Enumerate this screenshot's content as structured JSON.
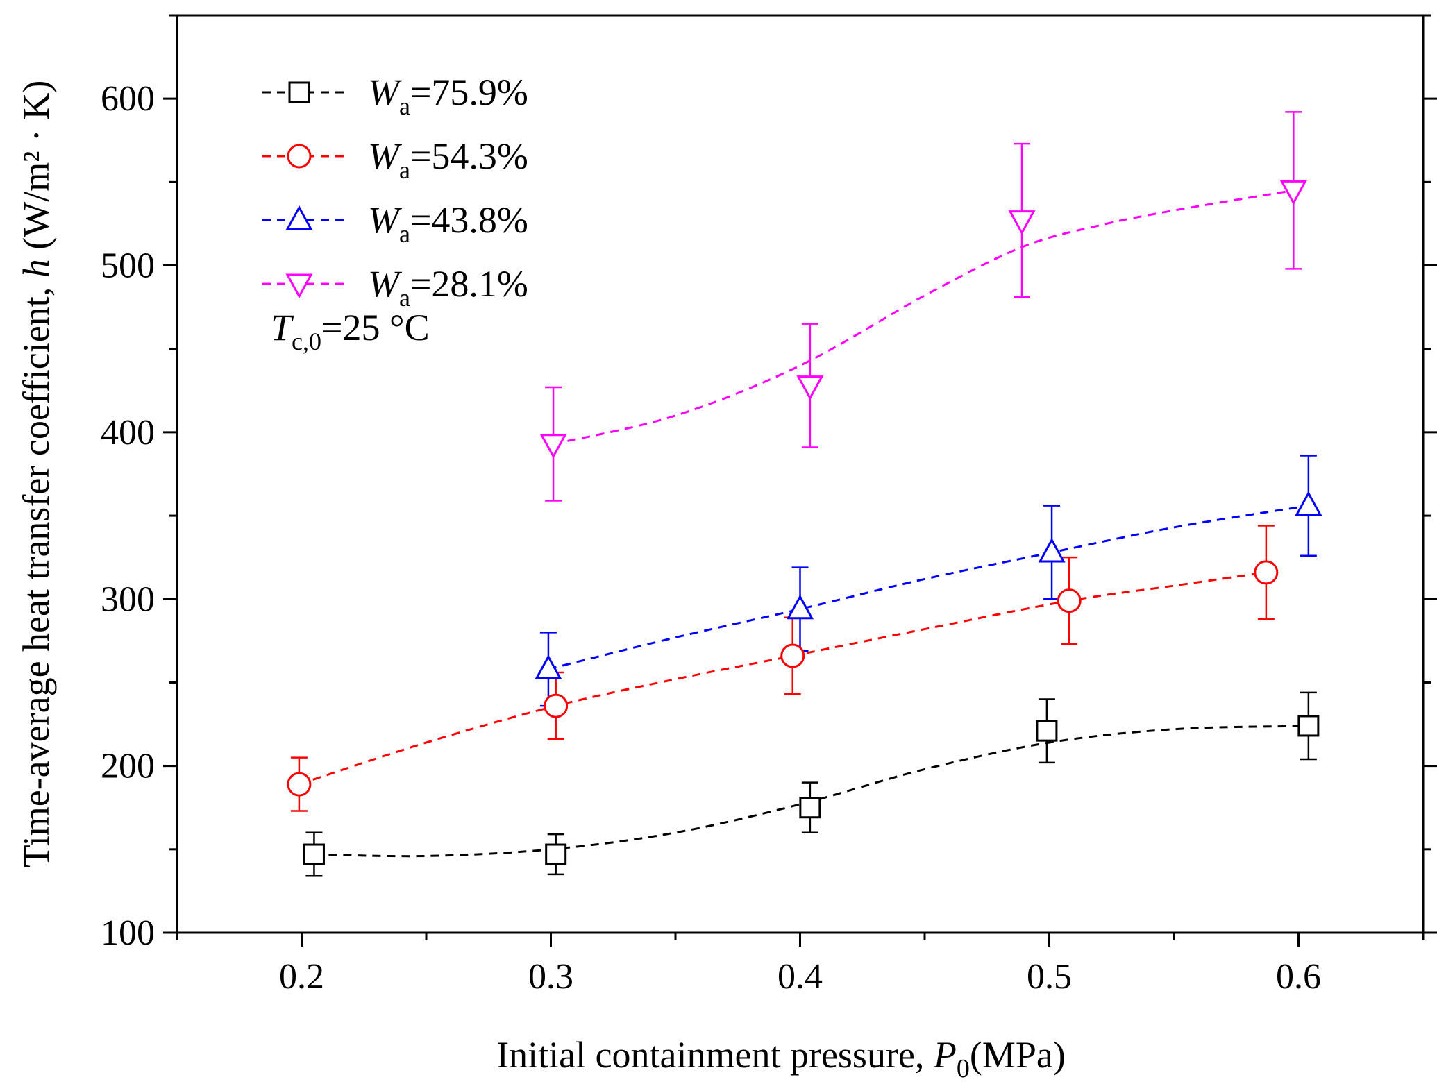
{
  "chart_data": {
    "type": "line",
    "xlabel_prefix": "Initial containment pressure, ",
    "xlabel_var": "P",
    "xlabel_sub": "0",
    "xlabel_unit": "(MPa)",
    "ylabel_prefix": "Time-average heat transfer coefficient, ",
    "ylabel_var": "h",
    "ylabel_unit": " (W/m² · K)",
    "xlim": [
      0.15,
      0.65
    ],
    "ylim": [
      100,
      650
    ],
    "x_ticks": [
      0.2,
      0.3,
      0.4,
      0.5,
      0.6
    ],
    "x_tick_labels": [
      "0.2",
      "0.3",
      "0.4",
      "0.5",
      "0.6"
    ],
    "y_ticks": [
      100,
      200,
      300,
      400,
      500,
      600
    ],
    "y_tick_labels": [
      "100",
      "200",
      "300",
      "400",
      "500",
      "600"
    ],
    "legend_position": "top-left",
    "annotation": {
      "var": "T",
      "sub": "c,0",
      "text": "=25 °C"
    },
    "series": [
      {
        "label_var": "W",
        "label_sub": "a",
        "label_value": "=75.9%",
        "marker": "square",
        "color": "#000000",
        "x": [
          0.205,
          0.302,
          0.404,
          0.499,
          0.604
        ],
        "y": [
          147,
          147,
          175,
          221,
          224
        ],
        "err": [
          13,
          12,
          15,
          19,
          20
        ],
        "fit_x": [
          0.205,
          0.25,
          0.3,
          0.35,
          0.4,
          0.45,
          0.5,
          0.55,
          0.604
        ],
        "fit_y": [
          147,
          146,
          150,
          160,
          177,
          198,
          214,
          222,
          224
        ]
      },
      {
        "label_var": "W",
        "label_sub": "a",
        "label_value": "=54.3%",
        "marker": "circle",
        "color": "#ff0000",
        "x": [
          0.199,
          0.302,
          0.397,
          0.508,
          0.587
        ],
        "y": [
          189,
          236,
          266,
          299,
          316
        ],
        "err": [
          16,
          20,
          23,
          26,
          28
        ],
        "fit_x": [
          0.199,
          0.25,
          0.302,
          0.35,
          0.397,
          0.45,
          0.508,
          0.55,
          0.587
        ],
        "fit_y": [
          189,
          214,
          236,
          252,
          266,
          282,
          299,
          308,
          316
        ]
      },
      {
        "label_var": "W",
        "label_sub": "a",
        "label_value": "=43.8%",
        "marker": "triangle-up",
        "color": "#0000ff",
        "x": [
          0.299,
          0.4,
          0.501,
          0.604
        ],
        "y": [
          258,
          294,
          328,
          356
        ],
        "err": [
          22,
          25,
          28,
          30
        ],
        "fit_x": [
          0.299,
          0.35,
          0.4,
          0.45,
          0.501,
          0.55,
          0.604
        ],
        "fit_y": [
          258,
          277,
          294,
          312,
          328,
          343,
          356
        ]
      },
      {
        "label_var": "W",
        "label_sub": "a",
        "label_value": "=28.1%",
        "marker": "triangle-down",
        "color": "#ff00ff",
        "x": [
          0.301,
          0.404,
          0.489,
          0.598
        ],
        "y": [
          393,
          428,
          527,
          545
        ],
        "err": [
          34,
          37,
          46,
          47
        ],
        "fit_x": [
          0.301,
          0.35,
          0.4,
          0.45,
          0.489,
          0.52,
          0.55,
          0.598
        ],
        "fit_y": [
          393,
          410,
          440,
          482,
          511,
          524,
          533,
          545
        ]
      }
    ]
  }
}
